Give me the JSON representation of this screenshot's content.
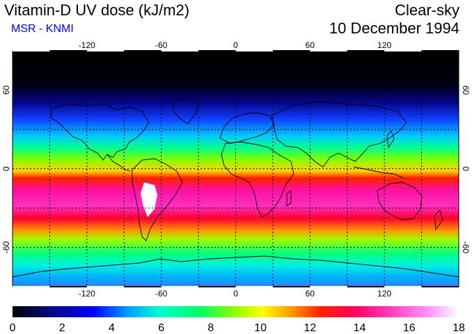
{
  "header": {
    "title": "Vitamin-D UV dose (kJ/m2)",
    "source": "MSR - KNMI",
    "condition": "Clear-sky",
    "date": "10 December 1994"
  },
  "axes": {
    "lon_ticks": [
      "-120",
      "-60",
      "0",
      "60",
      "120"
    ],
    "lat_ticks": [
      "60",
      "0",
      "-60"
    ]
  },
  "colorbar": {
    "labels": [
      "0",
      "2",
      "4",
      "6",
      "8",
      "10",
      "12",
      "14",
      "16",
      "18"
    ],
    "stops": [
      "#000000",
      "#0a0a7a",
      "#0000ff",
      "#00a0ff",
      "#00ffd0",
      "#00ff60",
      "#90ff00",
      "#ffff00",
      "#ffa000",
      "#ff2000",
      "#ff0060",
      "#ff40c0",
      "#ff90ff",
      "#ffffff"
    ]
  },
  "colors": {
    "source": "#0000ff",
    "coast": "#000000"
  }
}
